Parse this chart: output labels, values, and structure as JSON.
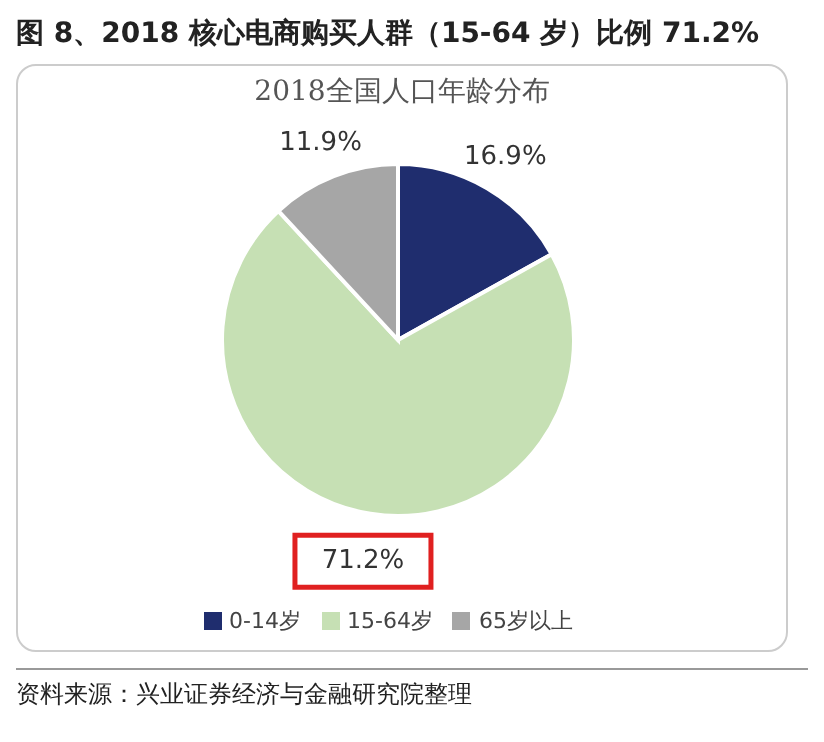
{
  "chart_data": {
    "type": "pie",
    "title": "图 8、2018 核心电商购买人群（15-64 岁）比例 71.2%",
    "subtitle": "2018全国人口年龄分布",
    "categories": [
      "0-14岁",
      "15-64岁",
      "65岁以上"
    ],
    "values": [
      16.9,
      71.2,
      11.9
    ],
    "value_labels": [
      "16.9%",
      "71.2%",
      "11.9%"
    ],
    "colors": [
      "#1f2d6e",
      "#c6e0b4",
      "#a6a6a6"
    ],
    "legend": "bottom",
    "annotations": [
      "资料来源：兴业证券经济与金融研究院整理"
    ]
  }
}
